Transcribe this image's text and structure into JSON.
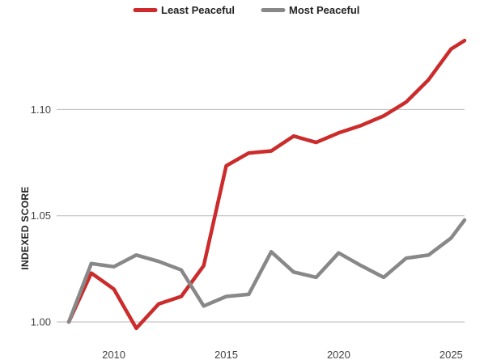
{
  "chart_data": {
    "type": "line",
    "title": "",
    "xlabel": "",
    "ylabel": "INDEXED SCORE",
    "xlim": [
      2008,
      2025.6
    ],
    "ylim": [
      1.0,
      1.135
    ],
    "x_ticks": [
      2010,
      2015,
      2020,
      2025
    ],
    "x_tick_labels": [
      "2010",
      "2015",
      "2020",
      "2025"
    ],
    "y_ticks": [
      1.0,
      1.05,
      1.1
    ],
    "y_tick_labels": [
      "1.00",
      "1.05",
      "1.10"
    ],
    "grid": "horizontal",
    "legend_position": "top-center",
    "x": [
      2008,
      2009,
      2010,
      2011,
      2012,
      2013,
      2014,
      2015,
      2016,
      2017,
      2018,
      2019,
      2020,
      2021,
      2022,
      2023,
      2024,
      2025,
      2025.6
    ],
    "series": [
      {
        "name": "Least Peaceful",
        "color": "#cc2b2b",
        "values": [
          1.0,
          1.023,
          1.0155,
          0.997,
          1.0085,
          1.012,
          1.0265,
          1.0735,
          1.0795,
          1.0805,
          1.0875,
          1.0845,
          1.089,
          1.0925,
          1.097,
          1.1035,
          1.114,
          1.1285,
          1.1325
        ]
      },
      {
        "name": "Most Peaceful",
        "color": "#888888",
        "values": [
          1.0,
          1.0275,
          1.026,
          1.0315,
          1.0285,
          1.0245,
          1.0075,
          1.012,
          1.013,
          1.033,
          1.0235,
          1.021,
          1.0325,
          1.0265,
          1.021,
          1.03,
          1.0315,
          1.0395,
          1.048
        ]
      }
    ]
  }
}
